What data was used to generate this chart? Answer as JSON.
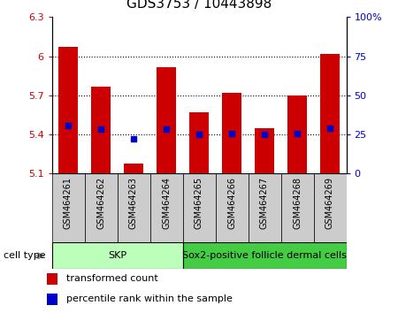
{
  "title": "GDS3753 / 10443898",
  "samples": [
    "GSM464261",
    "GSM464262",
    "GSM464263",
    "GSM464264",
    "GSM464265",
    "GSM464266",
    "GSM464267",
    "GSM464268",
    "GSM464269"
  ],
  "red_values": [
    6.07,
    5.77,
    5.18,
    5.92,
    5.57,
    5.72,
    5.45,
    5.7,
    6.02
  ],
  "blue_values": [
    5.47,
    5.44,
    5.37,
    5.44,
    5.4,
    5.41,
    5.4,
    5.41,
    5.45
  ],
  "ylim_left": [
    5.1,
    6.3
  ],
  "yticks_left": [
    5.1,
    5.4,
    5.7,
    6.0,
    6.3
  ],
  "ytick_labels_left": [
    "5.1",
    "5.4",
    "5.7",
    "6",
    "6.3"
  ],
  "yticks_right_pct": [
    0,
    25,
    50,
    75,
    100
  ],
  "ytick_labels_right": [
    "0",
    "25",
    "50",
    "75",
    "100%"
  ],
  "grid_lines": [
    5.4,
    5.7,
    6.0
  ],
  "bar_bottom": 5.1,
  "bar_color": "#cc0000",
  "blue_color": "#0000cc",
  "cell_groups": [
    {
      "label": "SKP",
      "start": 0,
      "end": 4,
      "color": "#bbffbb"
    },
    {
      "label": "Sox2-positive follicle dermal cells",
      "start": 4,
      "end": 9,
      "color": "#44cc44"
    }
  ],
  "cell_type_label": "cell type",
  "legend_red": "transformed count",
  "legend_blue": "percentile rank within the sample",
  "tick_label_color_left": "#cc0000",
  "tick_label_color_right": "#0000cc",
  "xtick_bg_color": "#cccccc",
  "bar_width": 0.6,
  "title_fontsize": 11,
  "axis_fontsize": 8,
  "xtick_fontsize": 7
}
